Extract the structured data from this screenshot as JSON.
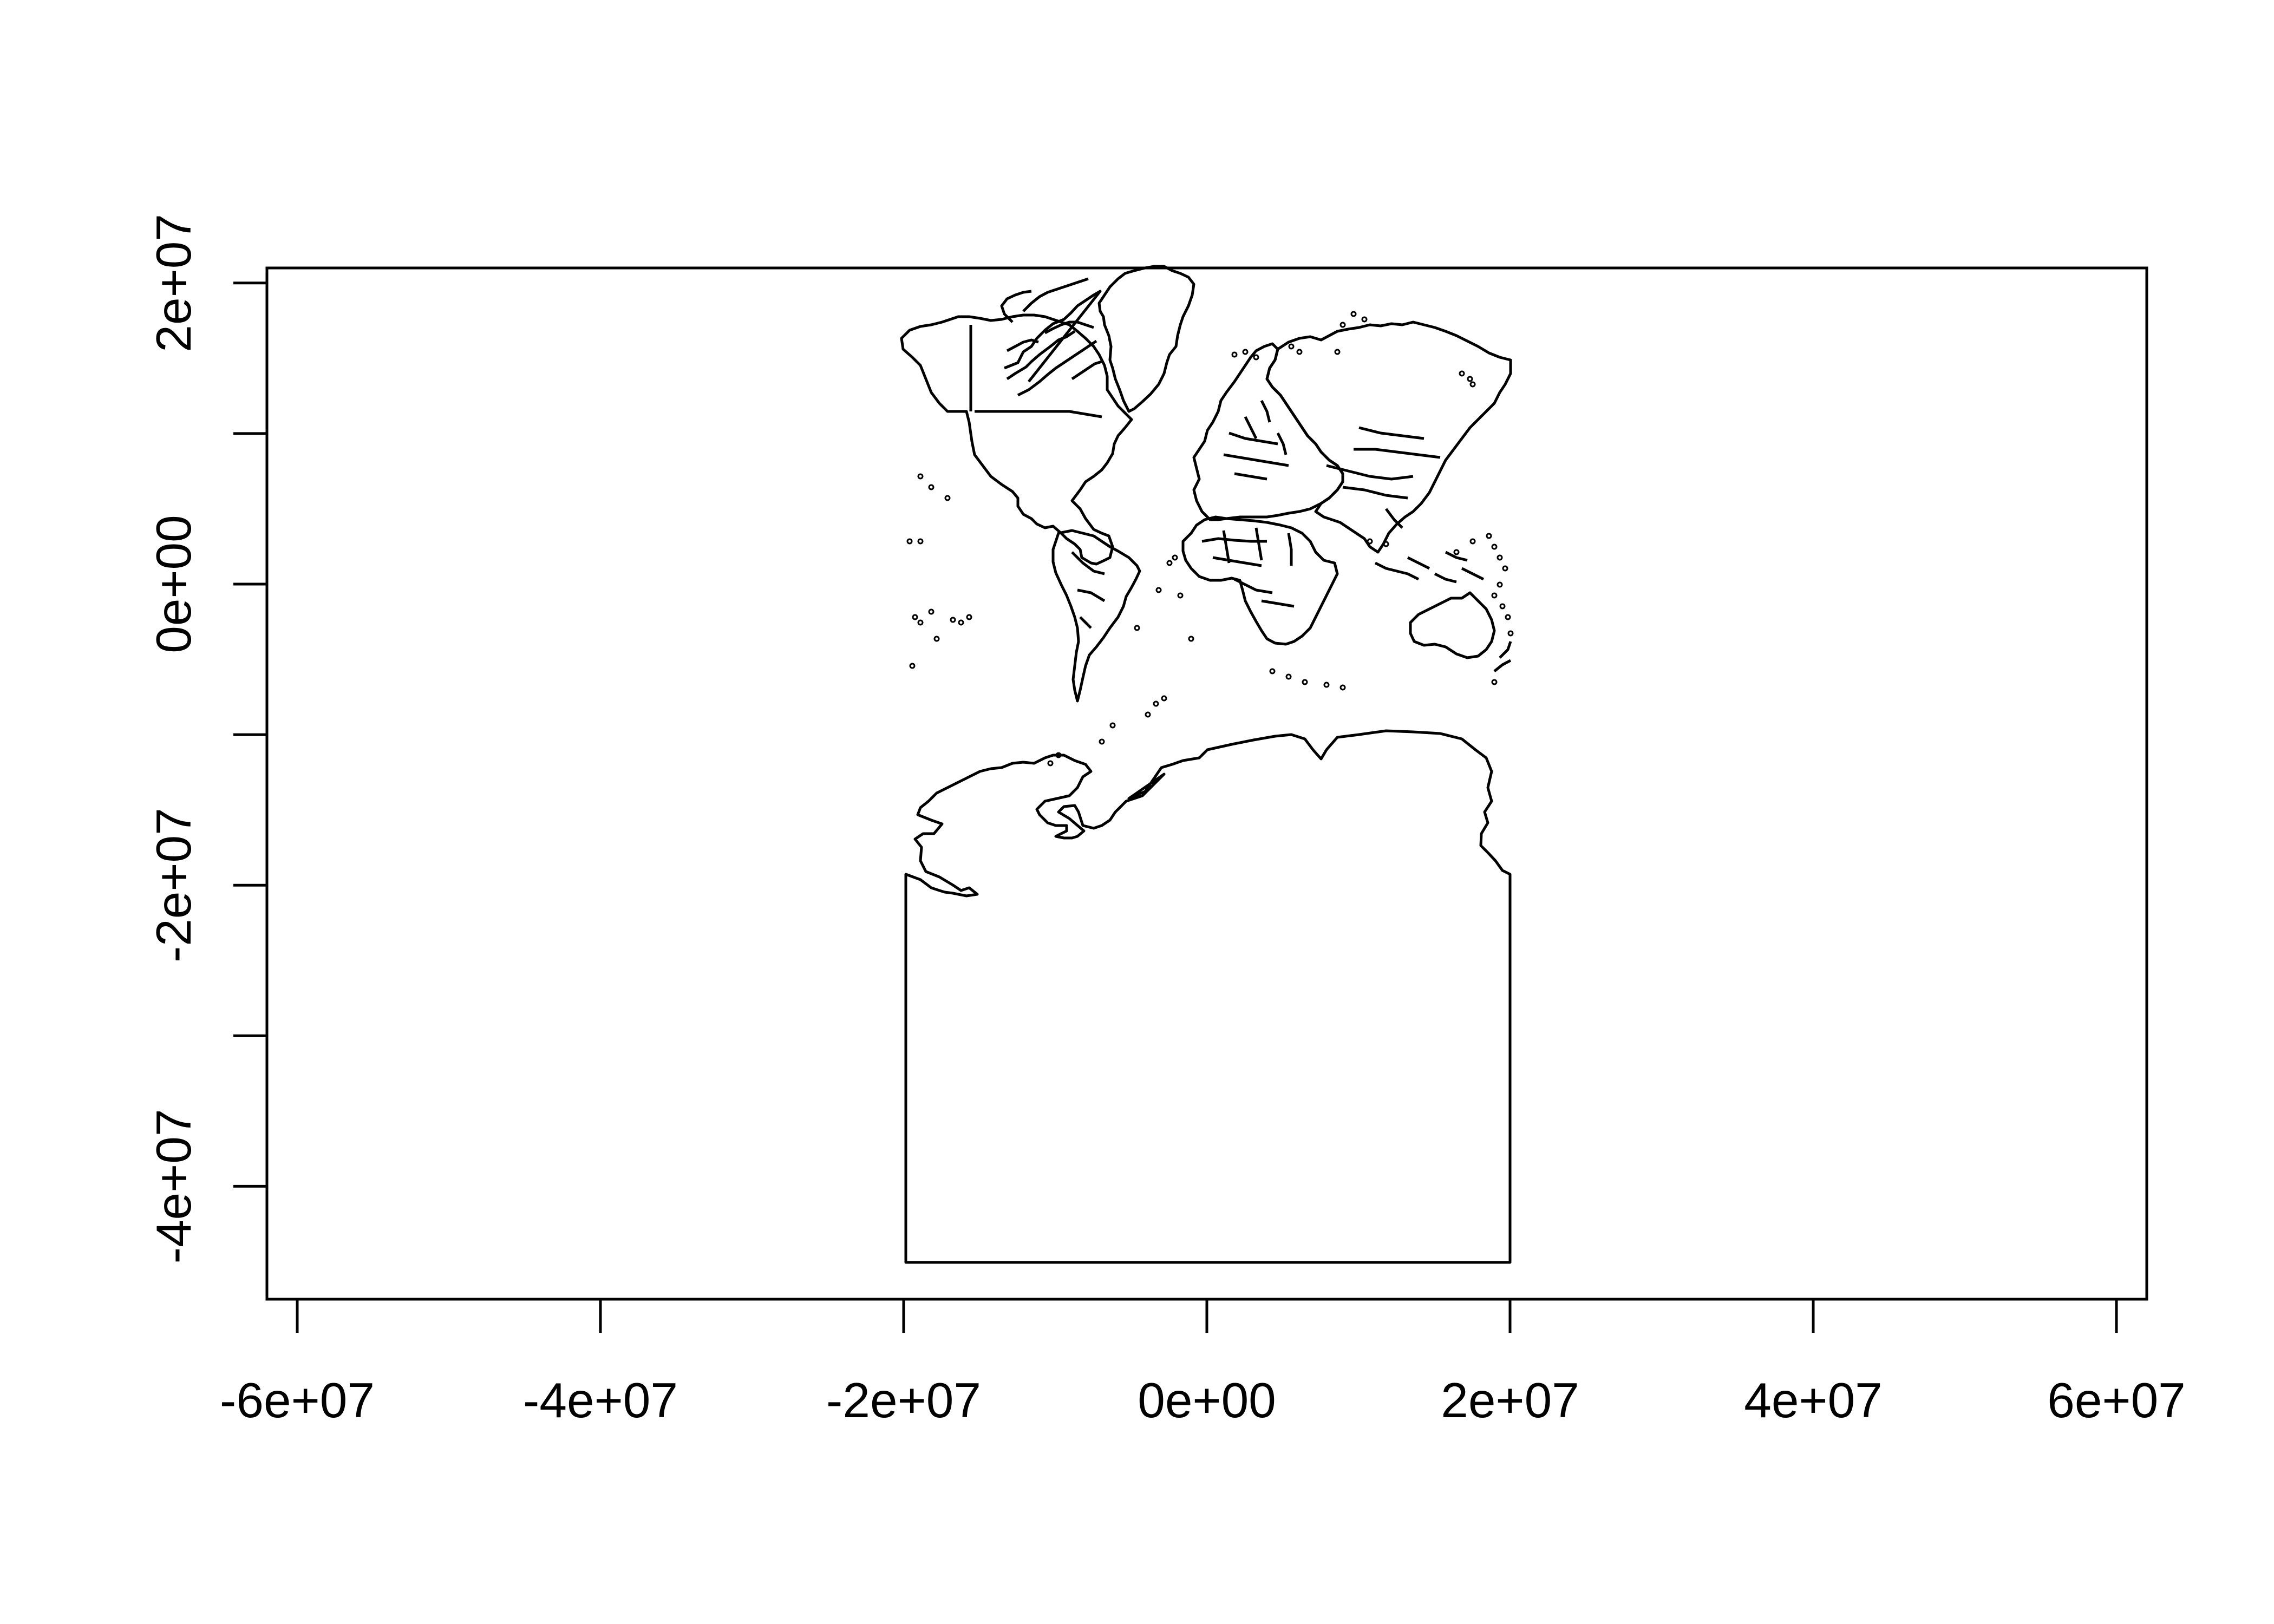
{
  "chart_data": {
    "type": "map",
    "projection_units": "projected metres",
    "xlim": [
      -62000000,
      62000000
    ],
    "ylim": [
      -47500000,
      21000000
    ],
    "x_ticks": [
      {
        "value": -60000000,
        "label": "-6e+07"
      },
      {
        "value": -40000000,
        "label": "-4e+07"
      },
      {
        "value": -20000000,
        "label": "-2e+07"
      },
      {
        "value": 0,
        "label": "0e+00"
      },
      {
        "value": 20000000,
        "label": "2e+07"
      },
      {
        "value": 40000000,
        "label": "4e+07"
      },
      {
        "value": 60000000,
        "label": "6e+07"
      }
    ],
    "y_ticks": [
      {
        "value": -40000000,
        "label": "-4e+07"
      },
      {
        "value": -30000000,
        "label": ""
      },
      {
        "value": -20000000,
        "label": "-2e+07"
      },
      {
        "value": -10000000,
        "label": ""
      },
      {
        "value": 0,
        "label": "0e+00"
      },
      {
        "value": 10000000,
        "label": ""
      },
      {
        "value": 20000000,
        "label": "2e+07"
      }
    ],
    "map_extent": {
      "x": [
        -20037508,
        20037508
      ],
      "y": [
        -45000000,
        19000000
      ]
    },
    "features": [
      "world country borders",
      "Antarctica (stretched polar extent)"
    ],
    "title": "",
    "xlabel": "",
    "ylabel": "",
    "grid": false,
    "legend": "none",
    "colors": {
      "line": "#000000",
      "background": "#ffffff"
    }
  }
}
